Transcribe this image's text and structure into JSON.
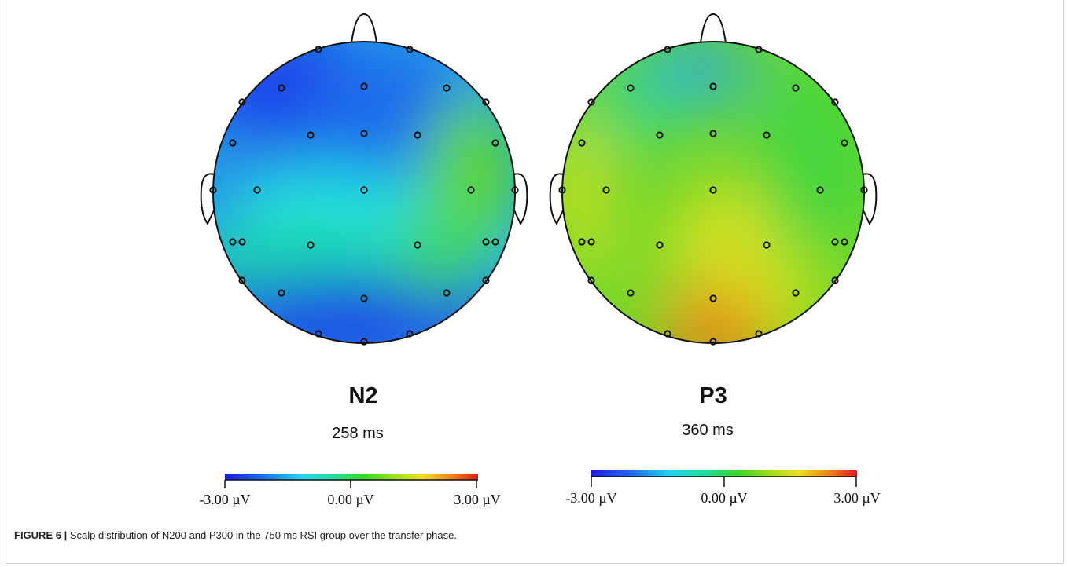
{
  "maps": [
    {
      "id": "n2",
      "title": "N2",
      "latency": "258 ms",
      "colorbar": {
        "min_label": "-3.00 µV",
        "mid_label": "0.00 µV",
        "max_label": "3.00 µV"
      }
    },
    {
      "id": "p3",
      "title": "P3",
      "latency": "360 ms",
      "colorbar": {
        "min_label": "-3.00 µV",
        "mid_label": "0.00 µV",
        "max_label": "3.00 µV"
      }
    }
  ],
  "colors": {
    "scale": [
      "#1a1ae6",
      "#1e6df0",
      "#22d6f0",
      "#1fe08a",
      "#38d626",
      "#a6e01a",
      "#f0e020",
      "#f08018",
      "#e81818"
    ]
  },
  "caption": {
    "label": "FIGURE 6 |",
    "text": " Scalp distribution of N200 and P300 in the 750 ms RSI group over the transfer phase."
  }
}
